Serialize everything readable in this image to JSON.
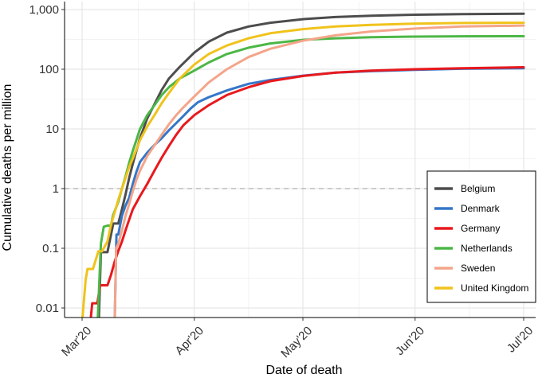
{
  "chart_data": {
    "type": "line",
    "title": "",
    "xlabel": "Date of death",
    "ylabel": "Cumulative deaths per million",
    "y_scale": "log10",
    "ylim": [
      0.007,
      1000
    ],
    "xlim": [
      0,
      122
    ],
    "x_unit": "days since 1 Mar 2020",
    "x_ticks": [
      {
        "value": 0,
        "label": "Mar'20"
      },
      {
        "value": 31,
        "label": "Apr'20"
      },
      {
        "value": 61,
        "label": "May'20"
      },
      {
        "value": 92,
        "label": "Jun'20"
      },
      {
        "value": 122,
        "label": "Jul'20"
      }
    ],
    "y_ticks": [
      {
        "value": 0.01,
        "label": "0.01"
      },
      {
        "value": 0.1,
        "label": "0.1"
      },
      {
        "value": 1,
        "label": "1"
      },
      {
        "value": 10,
        "label": "10"
      },
      {
        "value": 100,
        "label": "100"
      },
      {
        "value": 1000,
        "label": "1,000"
      }
    ],
    "reference_line": {
      "y": 1,
      "style": "dashed"
    },
    "grid": true,
    "legend_position": "bottom-right",
    "series": [
      {
        "name": "Belgium",
        "color": "#4d4d4d",
        "x": [
          4.6,
          5.2,
          7,
          8.6,
          10,
          11,
          12,
          13,
          14,
          15,
          16,
          18,
          20,
          22,
          24,
          27,
          31,
          35,
          40,
          46,
          52,
          61,
          70,
          80,
          92,
          105,
          122
        ],
        "y": [
          0.007,
          0.086,
          0.086,
          0.26,
          0.26,
          0.45,
          0.8,
          1.5,
          2.6,
          4.3,
          7,
          15,
          26,
          45,
          70,
          110,
          190,
          290,
          410,
          520,
          600,
          690,
          750,
          790,
          820,
          840,
          850
        ]
      },
      {
        "name": "Denmark",
        "color": "#3477c9",
        "x": [
          9,
          9.5,
          10,
          11,
          12,
          13,
          14,
          15,
          16,
          18,
          20,
          22,
          24,
          26,
          28,
          30,
          32,
          35,
          40,
          46,
          52,
          61,
          70,
          80,
          92,
          105,
          122
        ],
        "y": [
          0.007,
          0.17,
          0.17,
          0.35,
          0.52,
          0.7,
          1.2,
          1.9,
          2.8,
          4,
          5.4,
          7,
          9.5,
          12.5,
          16.5,
          22,
          28,
          34,
          44,
          57,
          66,
          78,
          88,
          93,
          98,
          102,
          104
        ]
      },
      {
        "name": "Germany",
        "color": "#e8191d",
        "x": [
          2.3,
          2.8,
          4.2,
          5,
          7,
          8,
          9,
          10,
          11,
          12,
          13,
          14,
          16,
          18,
          20,
          22,
          24,
          26,
          28,
          31,
          35,
          40,
          46,
          52,
          61,
          70,
          80,
          92,
          105,
          122
        ],
        "y": [
          0.007,
          0.012,
          0.012,
          0.024,
          0.024,
          0.036,
          0.06,
          0.09,
          0.13,
          0.2,
          0.3,
          0.45,
          0.75,
          1.2,
          2,
          3.3,
          5.2,
          8,
          11.5,
          17,
          25,
          37,
          50,
          63,
          77,
          88,
          95,
          100,
          104,
          108
        ]
      },
      {
        "name": "Netherlands",
        "color": "#4cb746",
        "x": [
          4.3,
          5.2,
          6,
          7,
          8,
          8.5,
          10,
          11,
          12,
          13,
          14,
          15,
          16,
          18,
          20,
          22,
          24,
          27,
          31,
          35,
          40,
          46,
          52,
          61,
          70,
          80,
          92,
          105,
          122
        ],
        "y": [
          0.007,
          0.12,
          0.23,
          0.24,
          0.24,
          0.35,
          0.6,
          1,
          1.6,
          2.7,
          4.3,
          6.5,
          10,
          17,
          25,
          37,
          50,
          70,
          95,
          130,
          180,
          230,
          270,
          310,
          330,
          345,
          352,
          356,
          358
        ]
      },
      {
        "name": "Sweden",
        "color": "#f4a58a",
        "x": [
          9,
          9.4,
          10,
          11,
          12,
          13,
          14,
          15,
          16,
          18,
          20,
          22,
          24,
          26,
          28,
          31,
          35,
          40,
          46,
          52,
          61,
          70,
          80,
          92,
          105,
          122
        ],
        "y": [
          0.007,
          0.1,
          0.12,
          0.2,
          0.35,
          0.55,
          0.9,
          1.4,
          2,
          3.5,
          5.3,
          8,
          12,
          17,
          23,
          35,
          60,
          100,
          160,
          220,
          300,
          370,
          430,
          480,
          520,
          540
        ]
      },
      {
        "name": "United Kingdom",
        "color": "#f0c31c",
        "x": [
          0,
          1,
          1.5,
          3,
          4.5,
          5.5,
          7,
          8,
          9,
          10,
          11,
          12,
          13,
          14,
          15,
          16,
          18,
          20,
          22,
          24,
          27,
          31,
          35,
          40,
          46,
          52,
          61,
          70,
          80,
          92,
          105,
          122
        ],
        "y": [
          0.007,
          0.03,
          0.045,
          0.045,
          0.089,
          0.089,
          0.13,
          0.25,
          0.4,
          0.65,
          1,
          1.5,
          2.3,
          3.2,
          4.5,
          6.5,
          11,
          17,
          27,
          40,
          70,
          120,
          180,
          250,
          330,
          400,
          470,
          520,
          555,
          580,
          595,
          600
        ]
      }
    ]
  }
}
